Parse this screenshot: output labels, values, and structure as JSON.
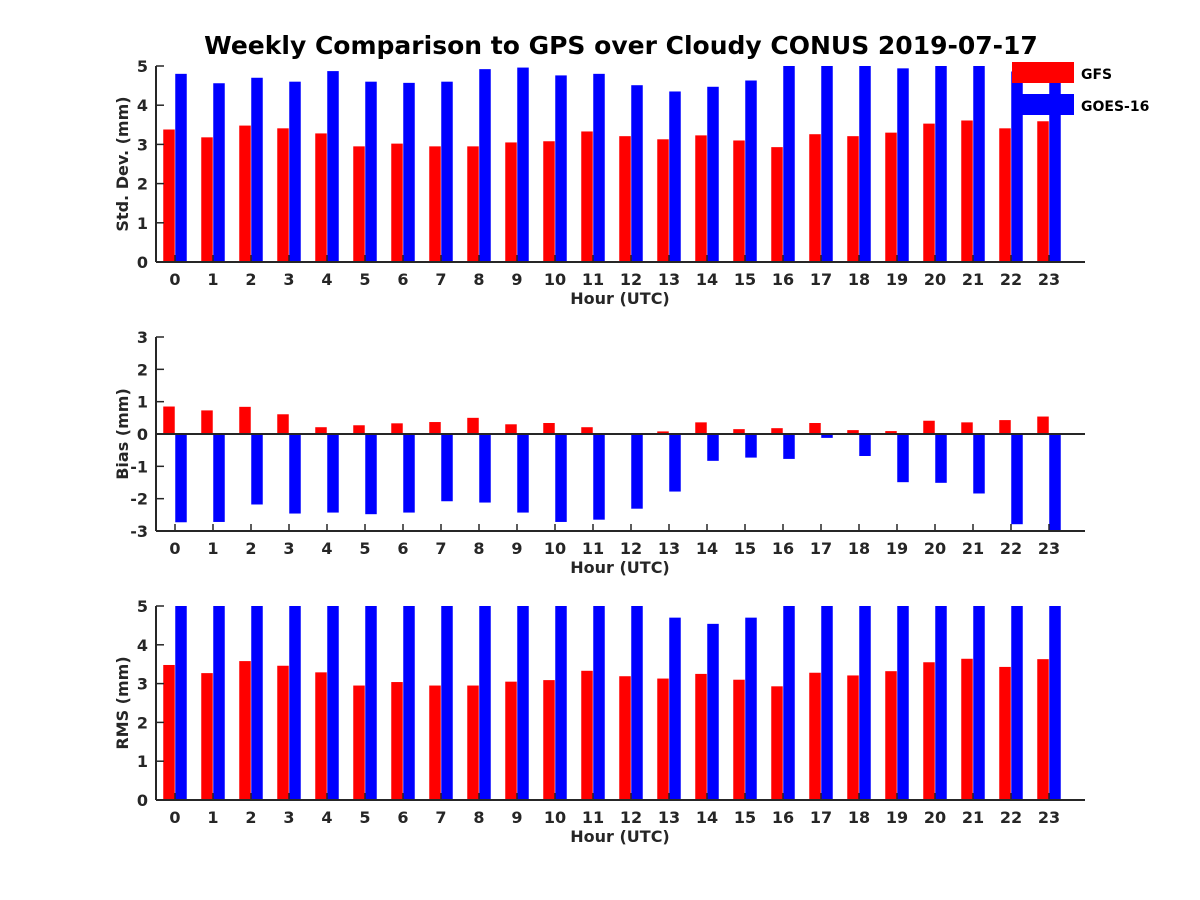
{
  "figure": {
    "title": "Weekly Comparison to GPS over Cloudy CONUS 2019-07-17"
  },
  "legend": {
    "placement": "top-right",
    "entries": [
      {
        "label": "GFS",
        "color": "#ff0000"
      },
      {
        "label": "GOES-16",
        "color": "#0000ff"
      }
    ]
  },
  "chart_data": [
    {
      "type": "bar",
      "panel": "top",
      "xlabel": "Hour (UTC)",
      "ylabel": "Std. Dev. (mm)",
      "ylim": [
        0,
        5
      ],
      "yticks": [
        0,
        1,
        2,
        3,
        4,
        5
      ],
      "categories": [
        "0",
        "1",
        "2",
        "3",
        "4",
        "5",
        "6",
        "7",
        "8",
        "9",
        "10",
        "11",
        "12",
        "13",
        "14",
        "15",
        "16",
        "17",
        "18",
        "19",
        "20",
        "21",
        "22",
        "23"
      ],
      "series": [
        {
          "name": "GFS",
          "color": "#ff0000",
          "values": [
            3.38,
            3.18,
            3.48,
            3.41,
            3.28,
            2.95,
            3.02,
            2.95,
            2.95,
            3.05,
            3.08,
            3.33,
            3.21,
            3.13,
            3.23,
            3.1,
            2.93,
            3.26,
            3.21,
            3.3,
            3.53,
            3.61,
            3.41,
            3.59
          ]
        },
        {
          "name": "GOES-16",
          "color": "#0000ff",
          "values": [
            4.8,
            4.56,
            4.7,
            4.6,
            4.87,
            4.6,
            4.57,
            4.6,
            4.92,
            4.96,
            4.76,
            4.8,
            4.51,
            4.35,
            4.47,
            4.63,
            5.0,
            5.0,
            5.0,
            4.94,
            5.0,
            5.0,
            4.86,
            5.0
          ]
        }
      ]
    },
    {
      "type": "bar",
      "panel": "middle",
      "xlabel": "Hour (UTC)",
      "ylabel": "Bias (mm)",
      "ylim": [
        -3,
        3
      ],
      "yticks": [
        -3,
        -2,
        -1,
        0,
        1,
        2,
        3
      ],
      "categories": [
        "0",
        "1",
        "2",
        "3",
        "4",
        "5",
        "6",
        "7",
        "8",
        "9",
        "10",
        "11",
        "12",
        "13",
        "14",
        "15",
        "16",
        "17",
        "18",
        "19",
        "20",
        "21",
        "22",
        "23"
      ],
      "series": [
        {
          "name": "GFS",
          "color": "#ff0000",
          "values": [
            0.85,
            0.73,
            0.84,
            0.61,
            0.21,
            0.27,
            0.33,
            0.37,
            0.5,
            0.3,
            0.34,
            0.21,
            0.02,
            0.08,
            0.36,
            0.15,
            0.18,
            0.34,
            0.12,
            0.09,
            0.41,
            0.36,
            0.43,
            0.54
          ]
        },
        {
          "name": "GOES-16",
          "color": "#0000ff",
          "values": [
            -2.73,
            -2.72,
            -2.18,
            -2.46,
            -2.43,
            -2.48,
            -2.43,
            -2.08,
            -2.12,
            -2.43,
            -2.72,
            -2.65,
            -2.31,
            -1.78,
            -0.83,
            -0.73,
            -0.77,
            -0.12,
            -0.68,
            -1.49,
            -1.51,
            -1.84,
            -2.79,
            -3.0
          ]
        }
      ]
    },
    {
      "type": "bar",
      "panel": "bottom",
      "xlabel": "Hour (UTC)",
      "ylabel": "RMS (mm)",
      "ylim": [
        0,
        5
      ],
      "yticks": [
        0,
        1,
        2,
        3,
        4,
        5
      ],
      "categories": [
        "0",
        "1",
        "2",
        "3",
        "4",
        "5",
        "6",
        "7",
        "8",
        "9",
        "10",
        "11",
        "12",
        "13",
        "14",
        "15",
        "16",
        "17",
        "18",
        "19",
        "20",
        "21",
        "22",
        "23"
      ],
      "series": [
        {
          "name": "GFS",
          "color": "#ff0000",
          "values": [
            3.48,
            3.27,
            3.58,
            3.46,
            3.29,
            2.95,
            3.04,
            2.95,
            2.95,
            3.05,
            3.09,
            3.33,
            3.19,
            3.13,
            3.25,
            3.1,
            2.93,
            3.28,
            3.21,
            3.32,
            3.55,
            3.64,
            3.43,
            3.63
          ]
        },
        {
          "name": "GOES-16",
          "color": "#0000ff",
          "values": [
            5.0,
            5.0,
            5.0,
            5.0,
            5.0,
            5.0,
            5.0,
            5.0,
            5.0,
            5.0,
            5.0,
            5.0,
            5.0,
            4.7,
            4.54,
            4.7,
            5.0,
            5.0,
            5.0,
            5.0,
            5.0,
            5.0,
            5.0,
            5.0
          ]
        }
      ]
    }
  ]
}
